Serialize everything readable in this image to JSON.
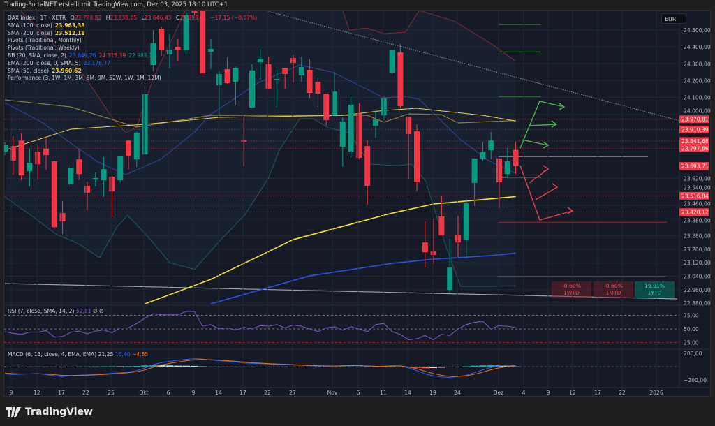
{
  "header": {
    "title": "Trading-PortalNET erstellt mit TradingView.com, Dez 03, 2025 18:10 UTC+1"
  },
  "legend": {
    "symbol": "DAX Index · 1T · XETR",
    "ohlc": {
      "o_label": "O",
      "o": "23.788,82",
      "h_label": "H",
      "h": "23.838,05",
      "l_label": "L",
      "l": "23.646,43",
      "c_label": "C",
      "c": "23.693,71",
      "change": "−17,15 (−0,07%)"
    },
    "indicators": [
      {
        "name": "SMA (100, close)",
        "values": [
          "23.963,38"
        ]
      },
      {
        "name": "SMA (200, close)",
        "values": [
          "23.512,18"
        ]
      },
      {
        "name": "Pivots (Traditional, Monthly)",
        "values": []
      },
      {
        "name": "Pivots (Traditional, Weekly)",
        "values": []
      },
      {
        "name": "BB (20, SMA, close, 2)",
        "values": [
          "23.649,26",
          "24.315,39",
          "22.983,13"
        ]
      },
      {
        "name": "EMA (200, close, 0, SMA, 5)",
        "values": [
          "23.176,77"
        ]
      },
      {
        "name": "SMA (50, close)",
        "values": [
          "23.960,62"
        ]
      },
      {
        "name": "Performance (3, 1W, 1M, 3M, 6M, 9M, 52W, 1W, 1M, 12M)",
        "values": []
      }
    ],
    "rsi": {
      "name": "RSI (7, close, SMA, 14, 2)",
      "value": "52,81",
      "extra": "∅  ∅"
    },
    "macd": {
      "name": "MACD (6, 13, close, 4, EMA, EMA)",
      "v1": "21,25",
      "v2": "16,40",
      "v3": "−4,85"
    }
  },
  "currency": "EUR",
  "performance": [
    {
      "value": "-0.60%",
      "label": "1WTD",
      "dir": "neg"
    },
    {
      "value": "-0.60%",
      "label": "1MTD",
      "dir": "neg"
    },
    {
      "value": "19.01%",
      "label": "1YTD",
      "dir": "pos"
    }
  ],
  "footer": {
    "brand": "TradingView"
  },
  "colors": {
    "up": "#089981",
    "down": "#f23645",
    "sma50": "#e8d44d",
    "sma100": "#8a8440",
    "sma200": "#f5e02a",
    "ema200": "#2f4fe0",
    "bb_basis": "#2a46a0",
    "bb_upper": "#7a2a35",
    "bb_lower": "#1c5a52",
    "rsi": "#7e57c2",
    "macd": "#2962ff",
    "signal": "#e86c17",
    "pivot": "#f23645"
  },
  "chart_data": {
    "type": "candlestick",
    "symbol": "DAX Index",
    "interval": "1T",
    "x_ticks": [
      "9",
      "12",
      "17",
      "22",
      "25",
      "Okt",
      "6",
      "9",
      "14",
      "17",
      "22",
      "27",
      "Nov",
      "6",
      "11",
      "14",
      "19",
      "24",
      "Dez",
      "4",
      "9",
      "12",
      "17",
      "22",
      "2026"
    ],
    "y_ticks": [
      "24.500,00",
      "24.400,00",
      "24.300,00",
      "24.200,00",
      "24.100,00",
      "24.000,00",
      "23.620,00",
      "23.540,00",
      "23.460,00",
      "23.380,00",
      "23.280,00",
      "23.200,00",
      "23.120,00",
      "23.040,00",
      "22.960,00",
      "22.880,00"
    ],
    "y_tick_values": [
      24500,
      24400,
      24300,
      24200,
      24100,
      24000,
      23620,
      23540,
      23460,
      23380,
      23280,
      23200,
      23120,
      23040,
      22960,
      22880
    ],
    "ylim": [
      22860,
      24680
    ],
    "price_badges": [
      "23.970,81",
      "23.910,39",
      "23.841,68",
      "23.797,66",
      "23.693,71",
      "23.516,84",
      "23.420,12"
    ],
    "price_badge_values": [
      23970.81,
      23910.39,
      23841.68,
      23797.66,
      23693.71,
      23516.84,
      23420.12
    ],
    "candles_ohlc": [
      [
        23779,
        23833,
        23758,
        23816
      ],
      [
        23812,
        23870,
        23642,
        23725
      ],
      [
        23845,
        23891,
        23609,
        23638
      ],
      [
        23663,
        23796,
        23572,
        23713
      ],
      [
        23779,
        23816,
        23613,
        23704
      ],
      [
        23796,
        23862,
        23671,
        23758
      ],
      [
        23721,
        23725,
        23323,
        23331
      ],
      [
        23414,
        23485,
        23290,
        23365
      ],
      [
        23584,
        23700,
        23568,
        23684
      ],
      [
        23733,
        23796,
        23609,
        23646
      ],
      [
        23576,
        23601,
        23431,
        23535
      ],
      [
        23613,
        23655,
        23572,
        23622
      ],
      [
        23609,
        23746,
        23510,
        23675
      ],
      [
        23630,
        23638,
        23390,
        23543
      ],
      [
        23609,
        23750,
        23593,
        23750
      ],
      [
        23845,
        23845,
        23675,
        23754
      ],
      [
        23733,
        23899,
        23688,
        23891
      ],
      [
        23762,
        24168,
        23762,
        24119
      ],
      [
        24293,
        24500,
        24255,
        24421
      ],
      [
        24508,
        24521,
        24347,
        24380
      ],
      [
        24355,
        24479,
        24272,
        24380
      ],
      [
        24400,
        24446,
        24313,
        24384
      ],
      [
        24380,
        24637,
        24359,
        24587
      ],
      [
        24620,
        24640,
        24590,
        24603
      ],
      [
        24616,
        24645,
        24243,
        24243
      ],
      [
        24371,
        24446,
        24268,
        24388
      ],
      [
        24173,
        24255,
        23994,
        24239
      ],
      [
        24268,
        24338,
        24181,
        24185
      ],
      [
        24193,
        24284,
        24057,
        24276
      ],
      [
        23845,
        23994,
        23692,
        23837
      ],
      [
        24040,
        24297,
        24036,
        24260
      ],
      [
        24309,
        24384,
        24206,
        24330
      ],
      [
        24297,
        24342,
        24148,
        24152
      ],
      [
        24206,
        24264,
        24044,
        24210
      ],
      [
        24276,
        24276,
        24152,
        24239
      ],
      [
        24334,
        24351,
        24189,
        24305
      ],
      [
        24231,
        24342,
        24193,
        24280
      ],
      [
        24264,
        24326,
        24094,
        24127
      ],
      [
        24193,
        24218,
        24044,
        24123
      ],
      [
        24123,
        24123,
        23932,
        23966
      ],
      [
        23994,
        24251,
        23994,
        24135
      ],
      [
        23808,
        23982,
        23688,
        23957
      ],
      [
        23779,
        24106,
        23742,
        24057
      ],
      [
        24003,
        24065,
        23733,
        23742
      ],
      [
        23812,
        23845,
        23464,
        23576
      ],
      [
        23932,
        24028,
        23862,
        23970
      ],
      [
        23994,
        24110,
        23965,
        24094
      ],
      [
        24247,
        24438,
        24239,
        24380
      ],
      [
        24367,
        24417,
        24036,
        24048
      ],
      [
        23986,
        23986,
        23617,
        23883
      ],
      [
        23899,
        23941,
        23543,
        23597
      ],
      [
        23240,
        23365,
        23091,
        23182
      ],
      [
        23186,
        23381,
        23112,
        23166
      ],
      [
        23394,
        23518,
        23282,
        23282
      ],
      [
        22959,
        23261,
        22946,
        23091
      ],
      [
        23286,
        23398,
        23153,
        23240
      ],
      [
        23257,
        23497,
        23149,
        23472
      ],
      [
        23593,
        23738,
        23456,
        23738
      ],
      [
        23738,
        23837,
        23721,
        23775
      ],
      [
        23787,
        23895,
        23733,
        23845
      ],
      [
        23738,
        23738,
        23444,
        23597
      ],
      [
        23646,
        23800,
        23622,
        23721
      ],
      [
        23788.82,
        23838.05,
        23646.43,
        23693.71
      ]
    ],
    "indicators": {
      "sma50": [
        [
          0,
          23787
        ],
        [
          8,
          23912
        ],
        [
          17,
          23941
        ],
        [
          26,
          23982
        ],
        [
          41,
          23994
        ],
        [
          46,
          24023
        ],
        [
          50,
          24036
        ],
        [
          58,
          23994
        ],
        [
          62,
          23960.62
        ]
      ],
      "sma100": [
        [
          0,
          24086
        ],
        [
          8,
          24044
        ],
        [
          16,
          23924
        ],
        [
          25,
          23994
        ],
        [
          44,
          23994
        ],
        [
          46,
          23953
        ],
        [
          49,
          24003
        ],
        [
          53,
          23998
        ],
        [
          55,
          23949
        ],
        [
          62,
          23963.38
        ]
      ],
      "sma200": [
        [
          17,
          22876
        ],
        [
          25,
          23021
        ],
        [
          35,
          23257
        ],
        [
          47,
          23414
        ],
        [
          52,
          23468
        ],
        [
          62,
          23512.18
        ]
      ],
      "ema200": [
        [
          25,
          22876
        ],
        [
          37,
          23042
        ],
        [
          47,
          23116
        ],
        [
          52,
          23141
        ],
        [
          59,
          23162
        ],
        [
          62,
          23176.77
        ]
      ],
      "bb_basis": [
        [
          0,
          24069
        ],
        [
          4.5,
          23953
        ],
        [
          8,
          23829
        ],
        [
          11.3,
          23717
        ],
        [
          14.7,
          23642
        ],
        [
          18.9,
          23733
        ],
        [
          23.1,
          23899
        ],
        [
          24.8,
          23994
        ],
        [
          27.8,
          24090
        ],
        [
          30.8,
          24189
        ],
        [
          35.8,
          24293
        ],
        [
          39.7,
          24251
        ],
        [
          43.5,
          24160
        ],
        [
          46,
          24098
        ],
        [
          48.6,
          24106
        ],
        [
          50.3,
          24090
        ],
        [
          55.3,
          23850
        ],
        [
          58.7,
          23725
        ],
        [
          62,
          23649.26
        ]
      ],
      "bb_upper": [
        [
          1.9,
          24616
        ],
        [
          9.6,
          24231
        ],
        [
          13,
          23982
        ],
        [
          14.7,
          23891
        ],
        [
          16,
          23924
        ],
        [
          18,
          24214
        ],
        [
          20.6,
          24479
        ],
        [
          21.9,
          24616
        ],
        [
          41,
          24616
        ],
        [
          41.8,
          24500
        ],
        [
          43.9,
          24512
        ],
        [
          46,
          24479
        ],
        [
          48.6,
          24487
        ],
        [
          50.3,
          24616
        ],
        [
          54.5,
          24554
        ],
        [
          58.7,
          24429
        ],
        [
          62,
          24315.39
        ]
      ],
      "bb_lower": [
        [
          0,
          23510
        ],
        [
          2.8,
          23414
        ],
        [
          6.2,
          23290
        ],
        [
          9,
          23230
        ],
        [
          11.5,
          23150
        ],
        [
          13.6,
          23331
        ],
        [
          14.9,
          23402
        ],
        [
          17.8,
          23249
        ],
        [
          20,
          23120
        ],
        [
          23,
          23080
        ],
        [
          26.3,
          23261
        ],
        [
          29.1,
          23402
        ],
        [
          32,
          23622
        ],
        [
          33.3,
          23787
        ],
        [
          35.8,
          23974
        ],
        [
          37.5,
          23974
        ],
        [
          39.2,
          23920
        ],
        [
          41.8,
          23891
        ],
        [
          44.3,
          23704
        ],
        [
          47.7,
          23696
        ],
        [
          49.4,
          23704
        ],
        [
          51.1,
          23601
        ],
        [
          53.6,
          23207
        ],
        [
          55.3,
          22979
        ],
        [
          58.7,
          22979
        ],
        [
          62,
          22983.13
        ]
      ]
    },
    "pivot_levels_weekly": [
      24533,
      24370,
      24106,
      23750,
      23627,
      23360,
      23040,
      22870
    ],
    "rsi": {
      "values": [
        45,
        42,
        40,
        44,
        44,
        47,
        35,
        36,
        44,
        46,
        41,
        46,
        48,
        43,
        52,
        52,
        60,
        70,
        78,
        76,
        76,
        76,
        82,
        82,
        55,
        58,
        50,
        52,
        48,
        53,
        50,
        56,
        55,
        58,
        52,
        57,
        55,
        50,
        45,
        52,
        54,
        48,
        54,
        50,
        45,
        58,
        60,
        45,
        40,
        30,
        32,
        38,
        30,
        40,
        38,
        50,
        58,
        62,
        64,
        50,
        56,
        55,
        52.81
      ],
      "levels": [
        75,
        50,
        25
      ],
      "y_ticks": [
        "75,00",
        "50,00",
        "25,00"
      ]
    },
    "macd": {
      "macd": [
        -110,
        -120,
        -115,
        -110,
        -105,
        -120,
        -140,
        -150,
        -135,
        -130,
        -125,
        -120,
        -110,
        -100,
        -95,
        -80,
        -60,
        -20,
        30,
        60,
        80,
        95,
        110,
        120,
        115,
        100,
        90,
        80,
        70,
        55,
        50,
        45,
        40,
        35,
        30,
        25,
        20,
        15,
        10,
        5,
        10,
        15,
        20,
        15,
        5,
        0,
        5,
        15,
        10,
        -20,
        -60,
        -110,
        -140,
        -155,
        -165,
        -150,
        -130,
        -90,
        -50,
        -10,
        10,
        18,
        21
      ],
      "signal": [
        -100,
        -105,
        -110,
        -110,
        -108,
        -112,
        -122,
        -132,
        -134,
        -132,
        -129,
        -125,
        -118,
        -110,
        -103,
        -92,
        -77,
        -50,
        -10,
        25,
        50,
        70,
        88,
        102,
        108,
        104,
        97,
        89,
        80,
        68,
        59,
        52,
        46,
        40,
        35,
        30,
        25,
        20,
        15,
        10,
        10,
        12,
        16,
        16,
        11,
        6,
        5,
        10,
        10,
        -5,
        -30,
        -70,
        -105,
        -130,
        -148,
        -149,
        -140,
        -115,
        -83,
        -47,
        -18,
        2,
        16
      ],
      "y_ticks": [
        "200,00",
        "−200,00"
      ],
      "y_tick_values": [
        200,
        -200
      ]
    }
  }
}
